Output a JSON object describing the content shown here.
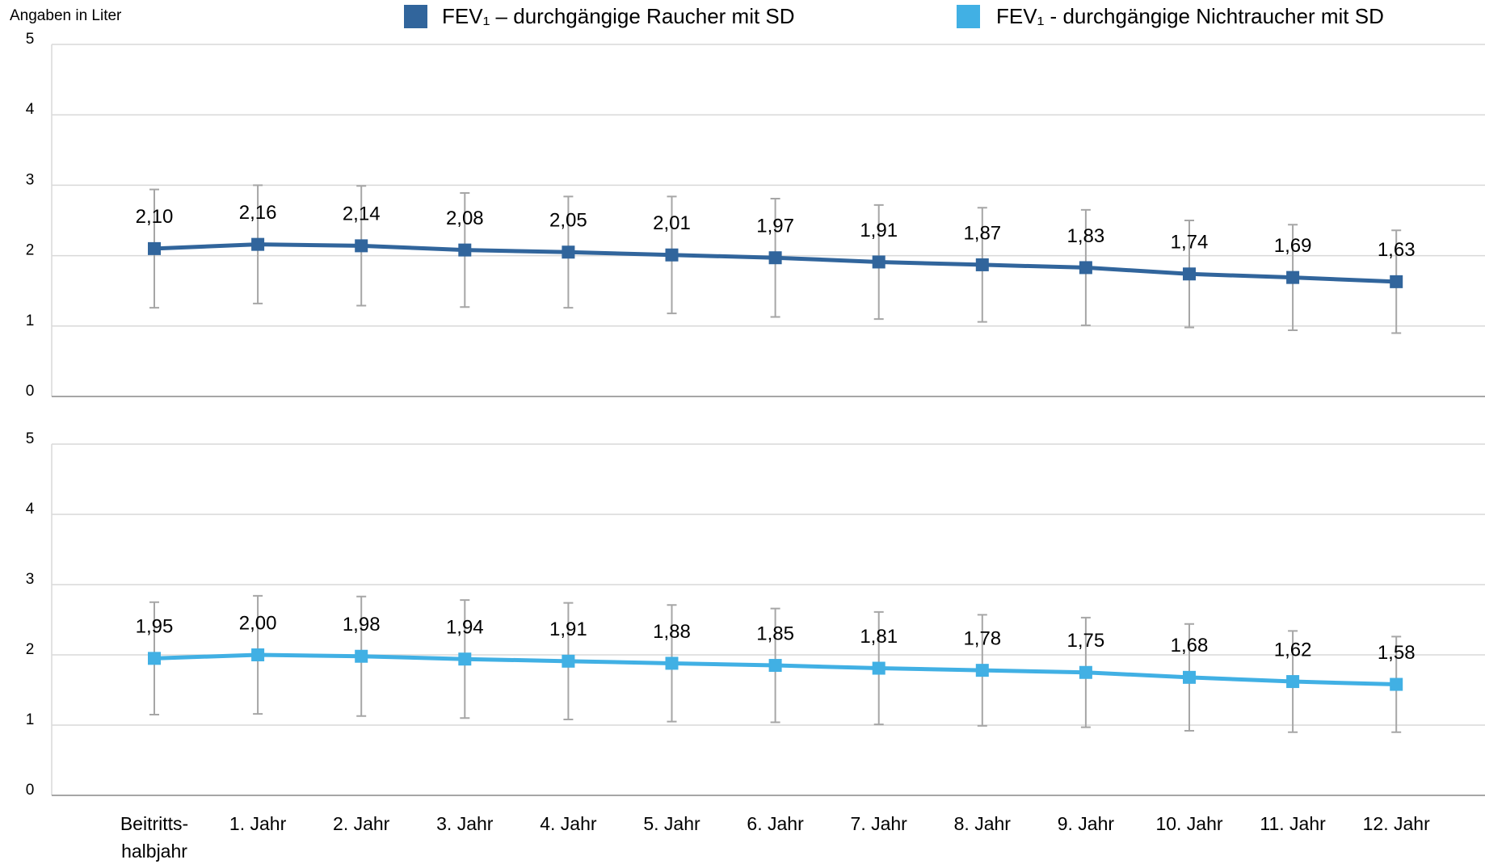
{
  "chart_data": [
    {
      "type": "line",
      "y_label": "Angaben in Liter",
      "categories": [
        "Beitritts-\nhalbjahr",
        "1. Jahr",
        "2. Jahr",
        "3. Jahr",
        "4. Jahr",
        "5. Jahr",
        "6. Jahr",
        "7. Jahr",
        "8. Jahr",
        "9. Jahr",
        "10. Jahr",
        "11. Jahr",
        "12. Jahr"
      ],
      "ylim": [
        0,
        5
      ],
      "yticks": [
        0,
        1,
        2,
        3,
        4,
        5
      ],
      "grid": true,
      "series": [
        {
          "name": "FEV₁ – durchgängige Raucher mit SD",
          "color": "#31659c",
          "values": [
            2.1,
            2.16,
            2.14,
            2.08,
            2.05,
            2.01,
            1.97,
            1.91,
            1.87,
            1.83,
            1.74,
            1.69,
            1.63
          ],
          "value_labels": [
            "2,10",
            "2,16",
            "2,14",
            "2,08",
            "2,05",
            "2,01",
            "1,97",
            "1,91",
            "1,87",
            "1,83",
            "1,74",
            "1,69",
            "1,63"
          ],
          "errors": [
            0.84,
            0.84,
            0.85,
            0.81,
            0.79,
            0.83,
            0.84,
            0.81,
            0.81,
            0.82,
            0.76,
            0.75,
            0.73
          ]
        }
      ]
    },
    {
      "type": "line",
      "categories": [
        "Beitritts-\nhalbjahr",
        "1. Jahr",
        "2. Jahr",
        "3. Jahr",
        "4. Jahr",
        "5. Jahr",
        "6. Jahr",
        "7. Jahr",
        "8. Jahr",
        "9. Jahr",
        "10. Jahr",
        "11. Jahr",
        "12. Jahr"
      ],
      "ylim": [
        0,
        5
      ],
      "yticks": [
        0,
        1,
        2,
        3,
        4,
        5
      ],
      "grid": true,
      "series": [
        {
          "name": "FEV₁ - durchgängige Nichtraucher mit SD",
          "color": "#41b0e4",
          "values": [
            1.95,
            2.0,
            1.98,
            1.94,
            1.91,
            1.88,
            1.85,
            1.81,
            1.78,
            1.75,
            1.68,
            1.62,
            1.58
          ],
          "value_labels": [
            "1,95",
            "2,00",
            "1,98",
            "1,94",
            "1,91",
            "1,88",
            "1,85",
            "1,81",
            "1,78",
            "1,75",
            "1,68",
            "1,62",
            "1,58"
          ],
          "errors": [
            0.8,
            0.84,
            0.85,
            0.84,
            0.83,
            0.83,
            0.81,
            0.8,
            0.79,
            0.78,
            0.76,
            0.72,
            0.68
          ]
        }
      ]
    }
  ]
}
